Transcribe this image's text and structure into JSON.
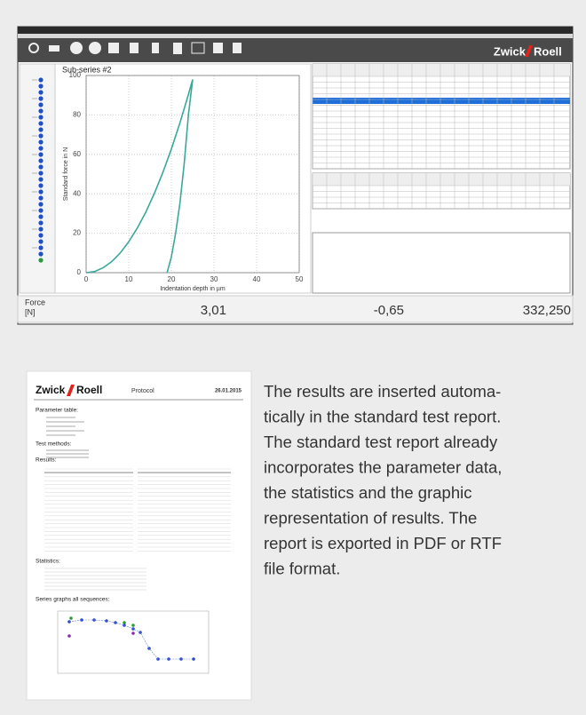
{
  "app": {
    "brand_left": "Zwick",
    "brand_right": "Roell"
  },
  "chart_data": {
    "type": "line",
    "title": "Sub-series #2",
    "x_label": "Indentation depth in µm",
    "y_label": "Standard force in N",
    "x": [
      0,
      2,
      4,
      6,
      8,
      10,
      12,
      14,
      16,
      18,
      20,
      22,
      24,
      25,
      24,
      23,
      22,
      21,
      20,
      19
    ],
    "values": [
      0,
      0.6,
      2.5,
      5.6,
      10,
      15.7,
      22.6,
      30.7,
      40.1,
      50.8,
      62.7,
      75.9,
      90.3,
      98,
      80,
      55,
      35,
      20,
      8,
      0
    ],
    "color": "#3aa89a",
    "xlim": [
      0,
      50
    ],
    "ylim": [
      0,
      100
    ],
    "xticks": [
      0,
      10,
      20,
      30,
      40,
      50
    ],
    "yticks": [
      0,
      20,
      40,
      60,
      80,
      100
    ],
    "grid": true
  },
  "status": {
    "label": "Force",
    "unit": "[N]",
    "value_1": "3,01",
    "value_2": "-0,65",
    "value_3": "332,250"
  },
  "report": {
    "brand_left": "Zwick",
    "brand_right": "Roell",
    "title": "Protocol",
    "date": "26.01.2015",
    "sections": [
      "Parameter table:",
      "Test methods:",
      "Results:",
      "Statistics:",
      "Series graphs all sequences:"
    ]
  },
  "description": [
    "The results are inserted automa-",
    "tically in the standard test report.",
    "The standard test report already",
    "incorporates the parameter data,",
    "the statistics and the graphic",
    "representation of results. The",
    "report is exported in PDF or RTF",
    "file format."
  ]
}
